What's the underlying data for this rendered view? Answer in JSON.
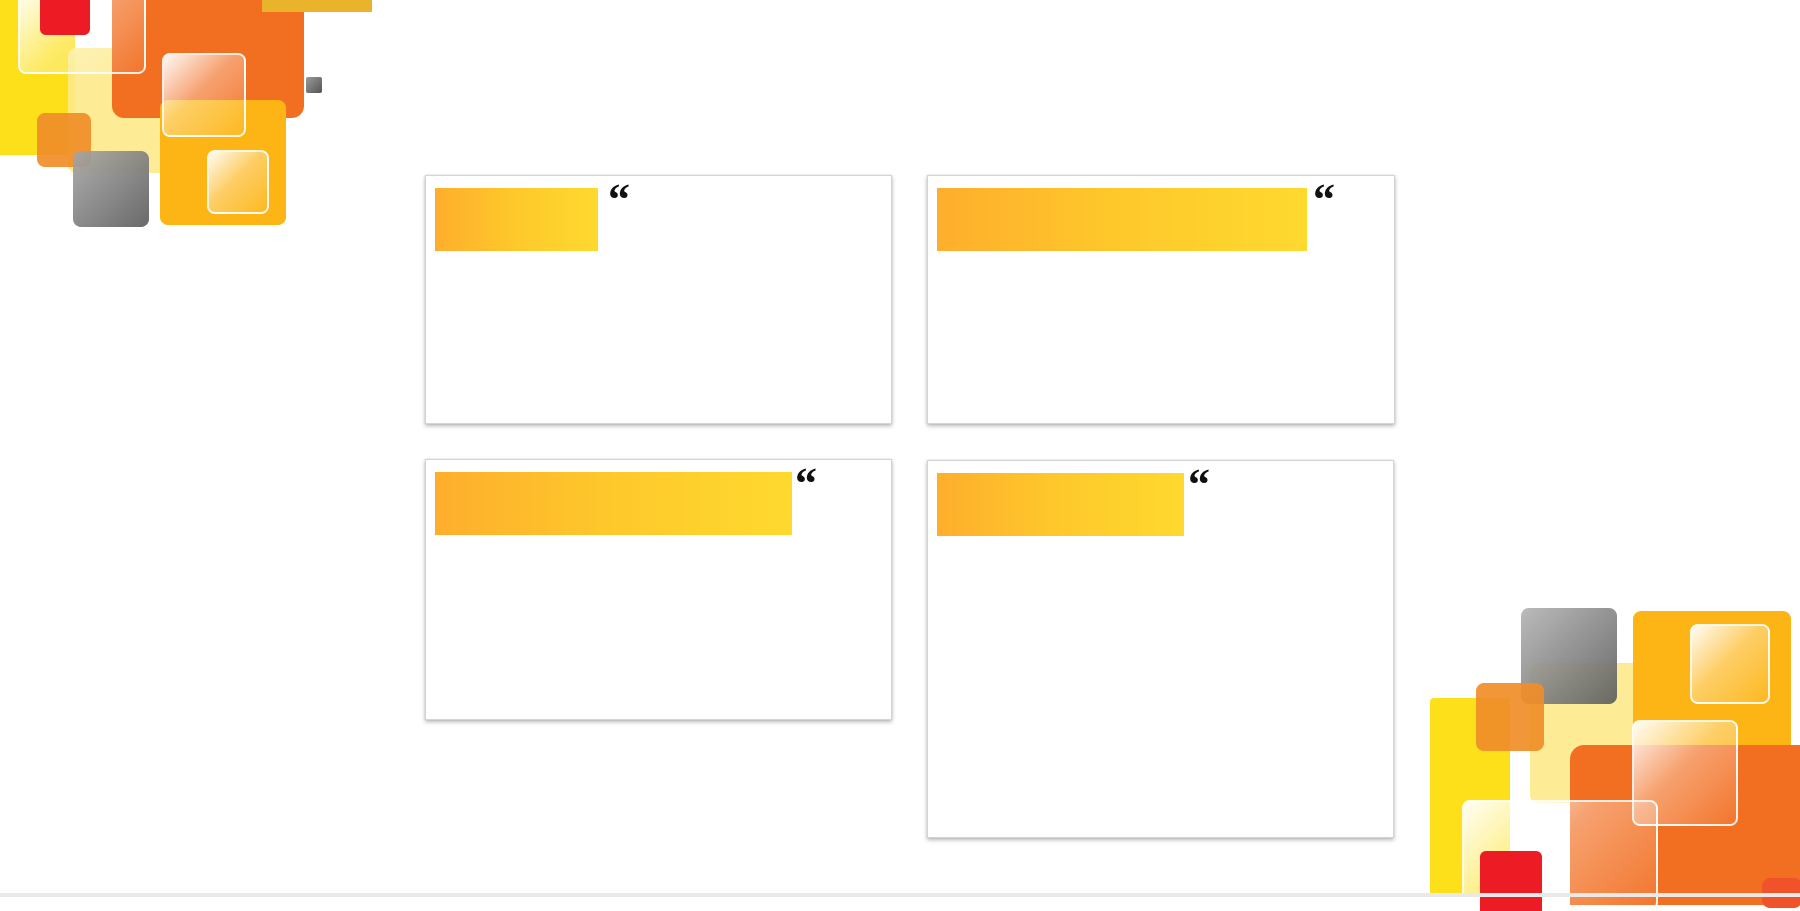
{
  "slide": {
    "cards": [
      {
        "quote_mark": "“",
        "title": ""
      },
      {
        "quote_mark": "“",
        "title": ""
      },
      {
        "quote_mark": "“",
        "title": ""
      },
      {
        "quote_mark": "“",
        "title": ""
      }
    ]
  },
  "colors": {
    "orange": "#f26f22",
    "amber": "#fdb515",
    "yellow": "#fde01a",
    "red": "#ed1c24",
    "gray": "#6d6e71",
    "bar_gradient": [
      "#feae2c",
      "#fed92e"
    ]
  }
}
